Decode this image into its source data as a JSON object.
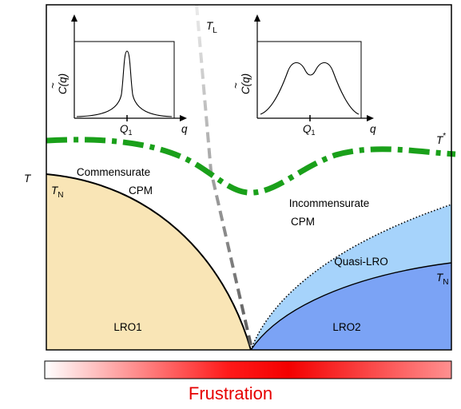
{
  "y_axis_label": "T",
  "x_axis_label": "Frustration",
  "regions": {
    "lro1": "LRO1",
    "lro2": "LRO2",
    "quasi_lro": "Quasi-LRO",
    "commensurate": [
      "Commensurate",
      "CPM"
    ],
    "incommensurate": [
      "Incommensurate",
      "CPM"
    ]
  },
  "curve_labels": {
    "tl": {
      "main": "T",
      "sub": "L"
    },
    "tn_left": {
      "main": "T",
      "sub": "N"
    },
    "tn_right": {
      "main": "T",
      "sub": "N"
    },
    "tstar": {
      "main": "T",
      "sup": "*"
    }
  },
  "insets": {
    "left": {
      "ylabel": "C(q)",
      "xlabel": "q",
      "tick": {
        "main": "Q",
        "sub": "1"
      },
      "peaks": "single"
    },
    "right": {
      "ylabel": "C(q)",
      "xlabel": "q",
      "tick": {
        "main": "Q",
        "sub": "1"
      },
      "peaks": "double"
    }
  },
  "colors": {
    "lro1": "#f9e5b6",
    "lro2": "#7ba3f5",
    "quasi_lro": "#a6d3fb",
    "tstar": "#1aa01a",
    "tl": "#b0b0b0",
    "frustration": "#e60000"
  }
}
